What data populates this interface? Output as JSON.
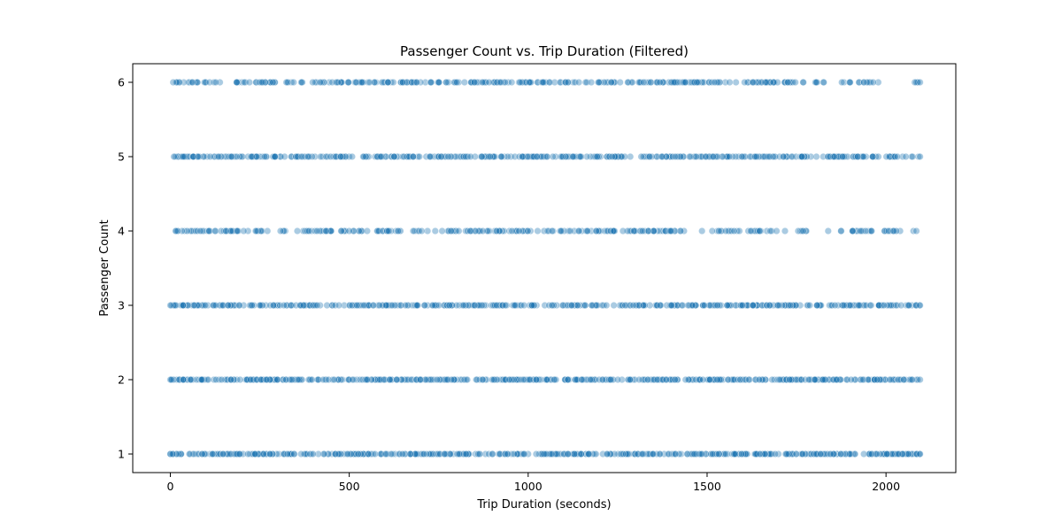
{
  "chart_data": {
    "type": "scatter",
    "title": "Passenger Count vs. Trip Duration (Filtered)",
    "xlabel": "Trip Duration (seconds)",
    "ylabel": "Passenger Count",
    "xlim": [
      -105,
      2195
    ],
    "ylim": [
      0.75,
      6.25
    ],
    "xticks": [
      0,
      500,
      1000,
      1500,
      2000
    ],
    "yticks": [
      1,
      2,
      3,
      4,
      5,
      6
    ],
    "grid": false,
    "point_color": "#1f77b4",
    "series": [
      {
        "y": 6,
        "x_start": 8,
        "x_end": 2095,
        "count": 360,
        "gaps": [
          [
            1770,
            1800
          ],
          [
            1830,
            1870
          ],
          [
            1900,
            1920
          ],
          [
            1990,
            2005
          ],
          [
            2030,
            2080
          ]
        ]
      },
      {
        "y": 5,
        "x_start": 10,
        "x_end": 2095,
        "count": 420,
        "gaps": []
      },
      {
        "y": 4,
        "x_start": 15,
        "x_end": 2085,
        "count": 300,
        "gaps": [
          [
            1460,
            1480
          ],
          [
            1720,
            1745
          ],
          [
            1780,
            1800
          ],
          [
            1850,
            1870
          ],
          [
            1880,
            1900
          ],
          [
            1965,
            1990
          ],
          [
            2040,
            2075
          ]
        ]
      },
      {
        "y": 3,
        "x_start": 0,
        "x_end": 2095,
        "count": 430,
        "gaps": []
      },
      {
        "y": 2,
        "x_start": 0,
        "x_end": 2095,
        "count": 480,
        "gaps": []
      },
      {
        "y": 1,
        "x_start": 0,
        "x_end": 2095,
        "count": 520,
        "gaps": []
      }
    ]
  }
}
